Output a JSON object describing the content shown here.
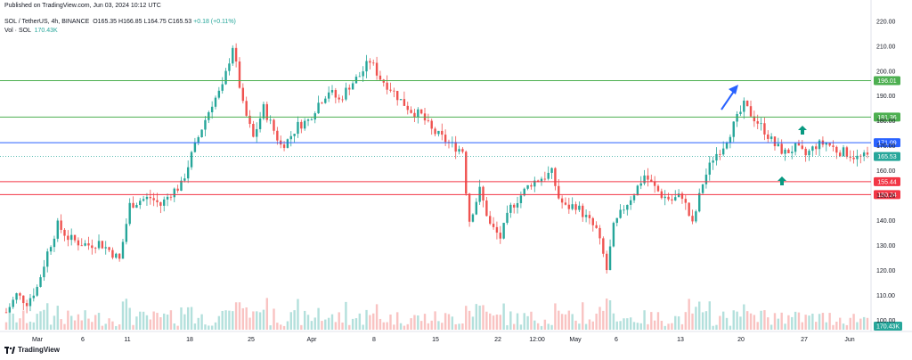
{
  "header": {
    "published": "Published on TradingView.com, Jun 03, 2024 10:12 UTC",
    "symbol": "SOL / TetherUS, 4h, BINANCE",
    "ohlc_o": "O165.35",
    "ohlc_h": "H166.85",
    "ohlc_l": "L164.75",
    "ohlc_c": "C165.53",
    "change": "+0.18 (+0.11%)",
    "vol_label": "Vol · SOL",
    "vol_value": "170.43K"
  },
  "footer": {
    "brand": "TradingView"
  },
  "colors": {
    "up": "#26a69a",
    "down": "#ef5350",
    "green_line": "#4caf50",
    "red_line": "#f23645",
    "blue_line": "#2962ff",
    "arrow_blue": "#2962ff",
    "arrow_green": "#089981"
  },
  "chart_data": {
    "type": "candlestick",
    "y_range": [
      96,
      223
    ],
    "y_ticks": [
      "220.00",
      "210.00",
      "200.00",
      "190.00",
      "180.00",
      "170.00",
      "160.00",
      "150.00",
      "140.00",
      "130.00",
      "120.00",
      "110.00",
      "100.00"
    ],
    "x_ticks": [
      "Mar",
      "6",
      "11",
      "18",
      "25",
      "Apr",
      "8",
      "15",
      "22",
      "12:00",
      "May",
      "6",
      "13",
      "20",
      "27",
      "Jun"
    ],
    "price_lines": [
      {
        "value": 196.01,
        "label": "196.01",
        "color": "#4caf50"
      },
      {
        "value": 181.36,
        "label": "181.36",
        "color": "#4caf50"
      },
      {
        "value": 171.09,
        "label": "171.09",
        "color": "#2962ff"
      },
      {
        "value": 155.44,
        "label": "155.44",
        "color": "#f23645"
      },
      {
        "value": 150.24,
        "label": "150.24",
        "color": "#f23645"
      }
    ],
    "last_price": {
      "value": 165.53,
      "label": "165.53"
    },
    "volume_label": "170.43K",
    "price_path": [
      [
        0,
        103
      ],
      [
        3,
        110
      ],
      [
        6,
        107
      ],
      [
        9,
        113
      ],
      [
        12,
        127
      ],
      [
        15,
        138
      ],
      [
        18,
        133
      ],
      [
        21,
        131
      ],
      [
        24,
        130
      ],
      [
        27,
        131
      ],
      [
        30,
        128
      ],
      [
        33,
        124
      ],
      [
        36,
        146
      ],
      [
        39,
        148
      ],
      [
        42,
        149
      ],
      [
        45,
        146
      ],
      [
        48,
        151
      ],
      [
        51,
        154
      ],
      [
        54,
        166
      ],
      [
        57,
        177
      ],
      [
        60,
        187
      ],
      [
        63,
        193
      ],
      [
        66,
        210
      ],
      [
        69,
        186
      ],
      [
        72,
        173
      ],
      [
        75,
        185
      ],
      [
        78,
        176
      ],
      [
        80,
        170
      ],
      [
        82,
        172
      ],
      [
        85,
        178
      ],
      [
        88,
        180
      ],
      [
        91,
        187
      ],
      [
        94,
        192
      ],
      [
        97,
        188
      ],
      [
        100,
        194
      ],
      [
        103,
        198
      ],
      [
        106,
        204
      ],
      [
        109,
        197
      ],
      [
        112,
        193
      ],
      [
        115,
        188
      ],
      [
        118,
        184
      ],
      [
        121,
        182
      ],
      [
        124,
        176
      ],
      [
        127,
        173
      ],
      [
        130,
        170
      ],
      [
        133,
        168
      ],
      [
        134,
        152
      ],
      [
        135,
        140
      ],
      [
        138,
        152
      ],
      [
        141,
        138
      ],
      [
        144,
        133
      ],
      [
        147,
        145
      ],
      [
        150,
        150
      ],
      [
        153,
        155
      ],
      [
        156,
        157
      ],
      [
        159,
        159
      ],
      [
        161,
        149
      ],
      [
        163,
        145
      ],
      [
        166,
        146
      ],
      [
        169,
        141
      ],
      [
        172,
        136
      ],
      [
        174,
        126
      ],
      [
        175,
        120
      ],
      [
        177,
        137
      ],
      [
        180,
        145
      ],
      [
        183,
        151
      ],
      [
        186,
        158
      ],
      [
        189,
        153
      ],
      [
        191,
        150
      ],
      [
        194,
        148
      ],
      [
        197,
        150
      ],
      [
        200,
        138
      ],
      [
        203,
        155
      ],
      [
        206,
        165
      ],
      [
        209,
        170
      ],
      [
        212,
        178
      ],
      [
        215,
        186
      ],
      [
        218,
        181
      ],
      [
        221,
        176
      ],
      [
        224,
        170
      ],
      [
        227,
        167
      ],
      [
        230,
        169
      ],
      [
        233,
        166
      ],
      [
        236,
        170
      ],
      [
        239,
        171
      ],
      [
        242,
        168
      ],
      [
        245,
        167
      ],
      [
        248,
        165
      ],
      [
        251,
        165.5
      ]
    ],
    "annotations": [
      {
        "type": "arrow",
        "direction": "up-right",
        "color": "#2962ff",
        "near": "20 May"
      },
      {
        "type": "arrow",
        "direction": "up",
        "color": "#089981",
        "near": "27 May"
      },
      {
        "type": "arrow",
        "direction": "up",
        "color": "#089981",
        "near": "150.24"
      }
    ]
  }
}
